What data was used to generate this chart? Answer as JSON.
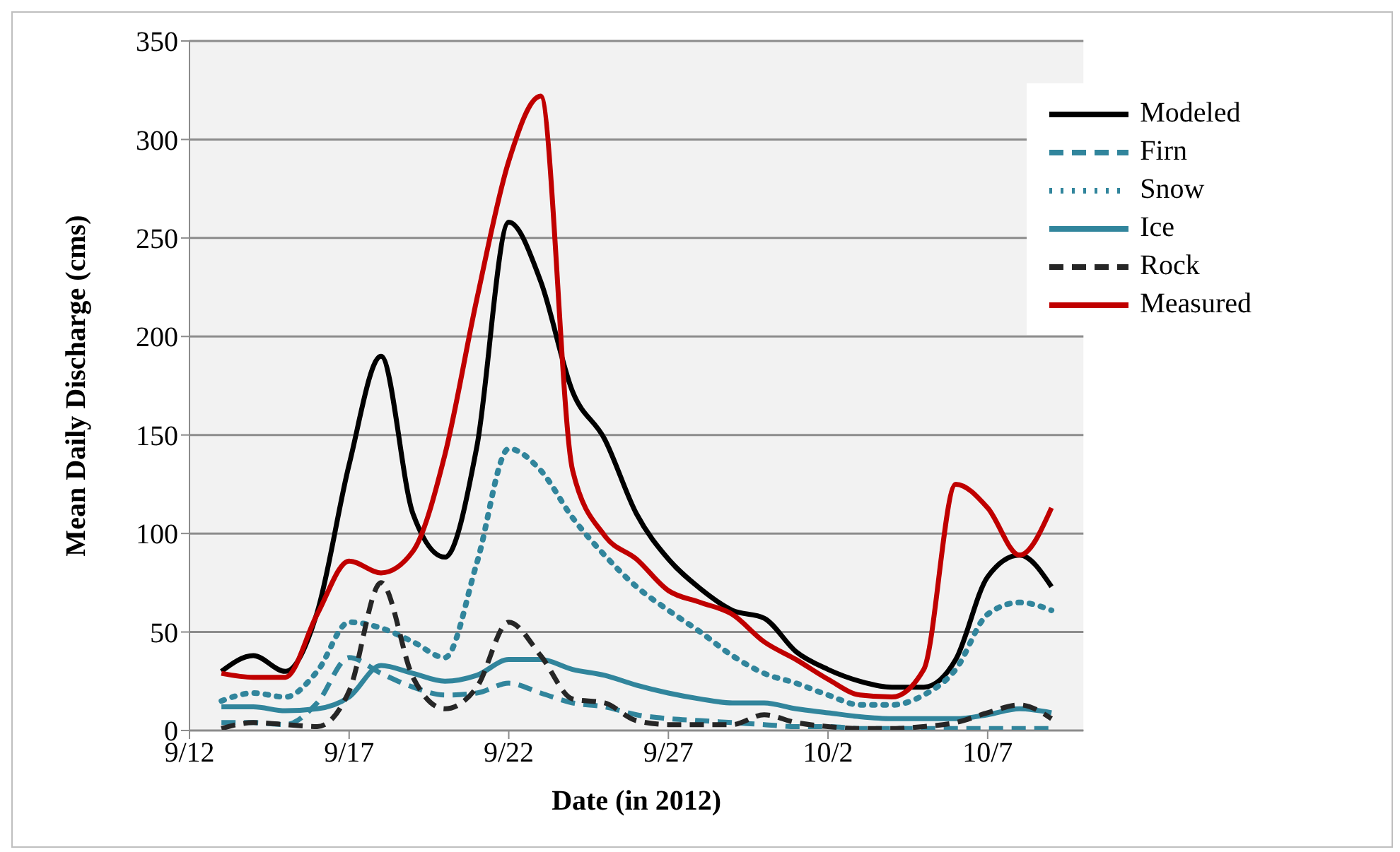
{
  "chart_data": {
    "type": "line",
    "xlabel": "Date (in 2012)",
    "ylabel": "Mean Daily Discharge (cms)",
    "x": [
      "2012-09-13",
      "2012-09-14",
      "2012-09-15",
      "2012-09-16",
      "2012-09-17",
      "2012-09-18",
      "2012-09-19",
      "2012-09-20",
      "2012-09-21",
      "2012-09-22",
      "2012-09-23",
      "2012-09-24",
      "2012-09-25",
      "2012-09-26",
      "2012-09-27",
      "2012-09-28",
      "2012-09-29",
      "2012-09-30",
      "2012-10-01",
      "2012-10-02",
      "2012-10-03",
      "2012-10-04",
      "2012-10-05",
      "2012-10-06",
      "2012-10-07",
      "2012-10-08",
      "2012-10-09"
    ],
    "series": [
      {
        "name": "Modeled",
        "color": "#000000",
        "line_style": "solid",
        "values": [
          30,
          38,
          30,
          60,
          135,
          190,
          110,
          88,
          144,
          258,
          228,
          172,
          148,
          110,
          87,
          72,
          61,
          57,
          40,
          31,
          25,
          22,
          22,
          36,
          78,
          89,
          73
        ]
      },
      {
        "name": "Firn",
        "color": "#31859c",
        "line_style": "dashed",
        "values": [
          4,
          4,
          3,
          14,
          37,
          29,
          22,
          18,
          19,
          24,
          19,
          14,
          12,
          8,
          6,
          5,
          4,
          3,
          2,
          2,
          1,
          1,
          1,
          1,
          1,
          1,
          1
        ]
      },
      {
        "name": "Snow",
        "color": "#31859c",
        "line_style": "dotted",
        "values": [
          15,
          19,
          17,
          30,
          55,
          52,
          45,
          37,
          85,
          143,
          132,
          108,
          89,
          73,
          61,
          50,
          38,
          29,
          24,
          18,
          13,
          13,
          18,
          31,
          59,
          65,
          61
        ]
      },
      {
        "name": "Ice",
        "color": "#31859c",
        "line_style": "solid",
        "values": [
          12,
          12,
          10,
          11,
          17,
          33,
          29,
          25,
          28,
          36,
          36,
          31,
          28,
          23,
          19,
          16,
          14,
          14,
          11,
          9,
          7,
          6,
          6,
          6,
          8,
          11,
          9
        ]
      },
      {
        "name": "Rock",
        "color": "#262626",
        "line_style": "dashed",
        "values": [
          1,
          4,
          3,
          2,
          20,
          75,
          27,
          11,
          22,
          55,
          38,
          16,
          14,
          5,
          3,
          3,
          3,
          8,
          4,
          2,
          1,
          1,
          2,
          4,
          9,
          13,
          6
        ]
      },
      {
        "name": "Measured",
        "color": "#c00000",
        "line_style": "solid",
        "values": [
          29,
          27,
          27,
          59,
          86,
          80,
          91,
          140,
          219,
          289,
          322,
          132,
          99,
          87,
          71,
          65,
          59,
          45,
          36,
          26,
          18,
          17,
          31,
          125,
          113,
          89,
          113
        ]
      }
    ],
    "xlim": [
      "2012-09-12",
      "2012-10-10"
    ],
    "xticks": [
      {
        "value": "2012-09-12",
        "label": "9/12"
      },
      {
        "value": "2012-09-17",
        "label": "9/17"
      },
      {
        "value": "2012-09-22",
        "label": "9/22"
      },
      {
        "value": "2012-09-27",
        "label": "9/27"
      },
      {
        "value": "2012-10-02",
        "label": "10/2"
      },
      {
        "value": "2012-10-07",
        "label": "10/7"
      }
    ],
    "ylim": [
      0,
      350
    ],
    "yticks": [
      0,
      50,
      100,
      150,
      200,
      250,
      300,
      350
    ],
    "grid": "y",
    "legend": "top right",
    "marker": "none"
  }
}
